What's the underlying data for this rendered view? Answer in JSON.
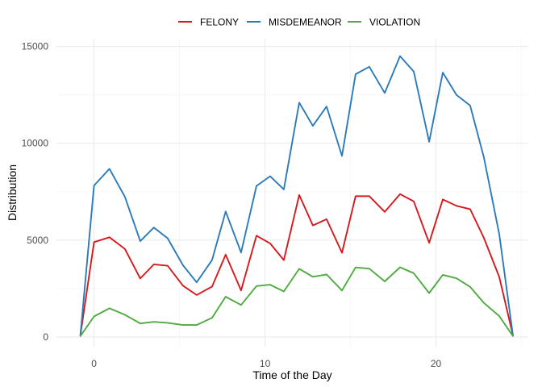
{
  "chart_data": {
    "type": "line",
    "xlabel": "Time of the Day",
    "ylabel": "Distribution",
    "xlim": [
      -2.2,
      25.4
    ],
    "ylim": [
      -500,
      15400
    ],
    "x_ticks": [
      0,
      10,
      20
    ],
    "y_ticks": [
      0,
      5000,
      10000,
      15000
    ],
    "x_tick_labels": [
      "0",
      "10",
      "20"
    ],
    "y_tick_labels": [
      "0",
      "5000",
      "10000",
      "15000"
    ],
    "grid": true,
    "legend_position": "top",
    "x": [
      -0.8,
      0,
      0.9,
      1.8,
      2.7,
      3.5,
      4.3,
      5.2,
      6.0,
      6.9,
      7.7,
      8.6,
      9.5,
      10.3,
      11.1,
      12.0,
      12.8,
      13.6,
      14.5,
      15.3,
      16.1,
      17.0,
      17.9,
      18.7,
      19.6,
      20.4,
      21.2,
      22.0,
      22.8,
      23.7,
      24.5
    ],
    "series": [
      {
        "name": "FELONY",
        "color": "#d7191c",
        "values": [
          100,
          4900,
          5150,
          4550,
          3020,
          3750,
          3680,
          2650,
          2170,
          2600,
          4250,
          2400,
          5230,
          4830,
          3970,
          7330,
          5760,
          6080,
          4350,
          7270,
          7270,
          6460,
          7380,
          7000,
          4860,
          7100,
          6770,
          6600,
          5120,
          3100,
          100
        ]
      },
      {
        "name": "MISDEMEANOR",
        "color": "#2b7bba",
        "values": [
          100,
          7820,
          8680,
          7240,
          4950,
          5650,
          5100,
          3710,
          2820,
          3970,
          6480,
          4360,
          7800,
          8300,
          7620,
          12100,
          10900,
          11900,
          9350,
          13570,
          13950,
          12600,
          14500,
          13700,
          10080,
          13650,
          12500,
          11950,
          9280,
          5310,
          100
        ]
      },
      {
        "name": "VIOLATION",
        "color": "#4dab3f",
        "values": [
          50,
          1060,
          1480,
          1150,
          700,
          780,
          730,
          620,
          620,
          990,
          2080,
          1650,
          2630,
          2700,
          2350,
          3520,
          3110,
          3230,
          2400,
          3590,
          3530,
          2870,
          3600,
          3290,
          2270,
          3210,
          3030,
          2590,
          1760,
          1080,
          50
        ]
      }
    ]
  }
}
